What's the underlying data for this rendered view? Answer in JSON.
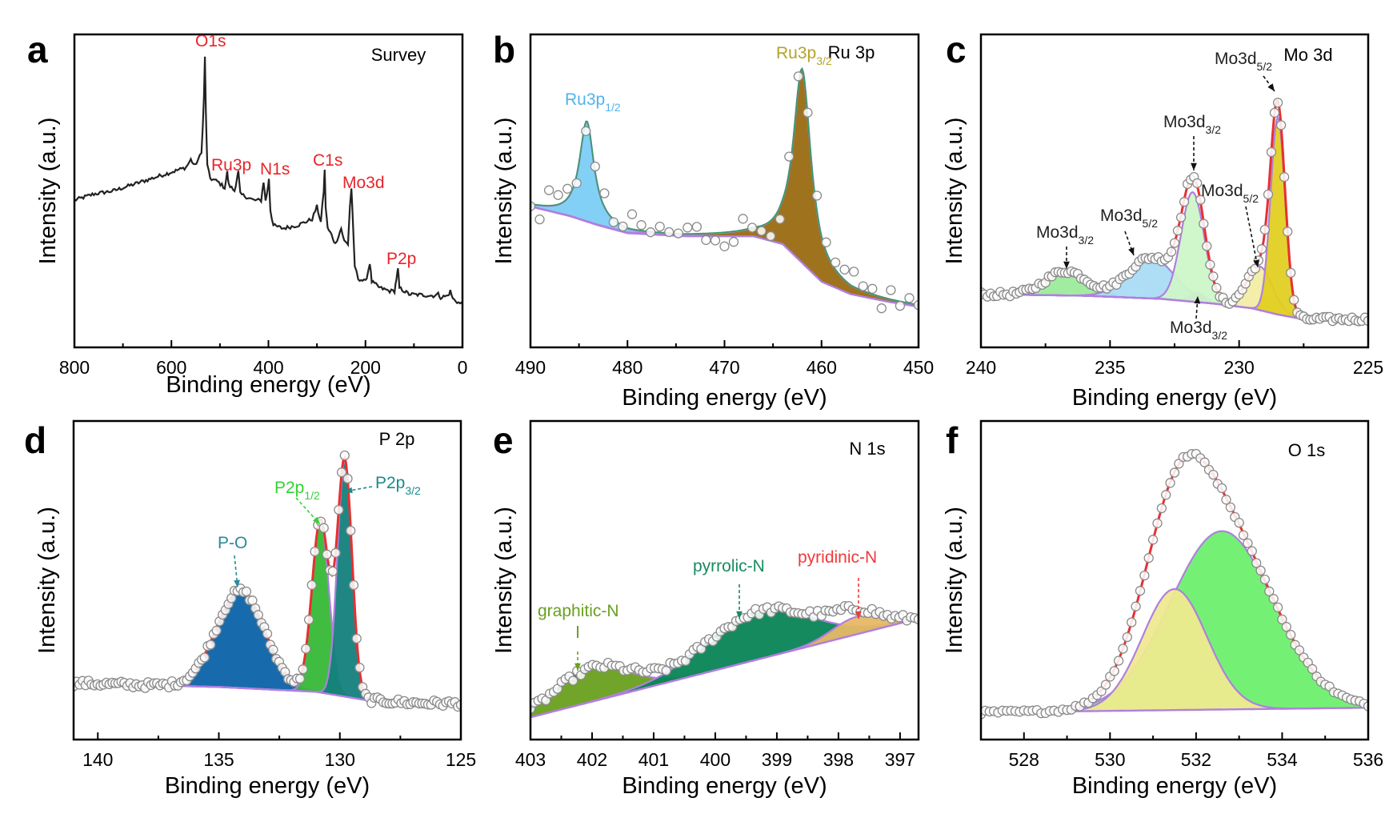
{
  "chart_data": [
    {
      "panel": "a",
      "type": "line",
      "title": "Survey",
      "xlabel": "Binding energy (eV)",
      "ylabel": "Intensity (a.u.)",
      "xlim": [
        800,
        0
      ],
      "xticks": [
        800,
        600,
        400,
        200,
        0
      ],
      "ylim": [
        0,
        1
      ],
      "grid": false,
      "line_color": "#222222",
      "series": [
        {
          "points": [
            [
              800,
              0.47
            ],
            [
              760,
              0.49
            ],
            [
              720,
              0.5
            ],
            [
              680,
              0.52
            ],
            [
              640,
              0.54
            ],
            [
              600,
              0.56
            ],
            [
              570,
              0.575
            ],
            [
              560,
              0.6
            ],
            [
              552,
              0.58
            ],
            [
              545,
              0.6
            ],
            [
              538,
              0.62
            ],
            [
              533,
              0.8
            ],
            [
              531,
              0.93
            ],
            [
              529,
              0.75
            ],
            [
              526,
              0.58
            ],
            [
              520,
              0.54
            ],
            [
              505,
              0.53
            ],
            [
              490,
              0.51
            ],
            [
              485,
              0.56
            ],
            [
              482,
              0.52
            ],
            [
              470,
              0.5
            ],
            [
              465,
              0.54
            ],
            [
              462,
              0.56
            ],
            [
              458,
              0.49
            ],
            [
              430,
              0.47
            ],
            [
              415,
              0.47
            ],
            [
              410,
              0.53
            ],
            [
              406,
              0.47
            ],
            [
              402,
              0.5
            ],
            [
              399,
              0.54
            ],
            [
              396,
              0.44
            ],
            [
              390,
              0.39
            ],
            [
              370,
              0.38
            ],
            [
              340,
              0.39
            ],
            [
              310,
              0.41
            ],
            [
              300,
              0.45
            ],
            [
              292,
              0.4
            ],
            [
              286,
              0.5
            ],
            [
              284,
              0.57
            ],
            [
              282,
              0.45
            ],
            [
              278,
              0.38
            ],
            [
              270,
              0.36
            ],
            [
              262,
              0.33
            ],
            [
              255,
              0.36
            ],
            [
              250,
              0.38
            ],
            [
              244,
              0.34
            ],
            [
              236,
              0.33
            ],
            [
              232,
              0.45
            ],
            [
              229,
              0.51
            ],
            [
              226,
              0.4
            ],
            [
              222,
              0.26
            ],
            [
              215,
              0.22
            ],
            [
              200,
              0.21
            ],
            [
              195,
              0.24
            ],
            [
              191,
              0.27
            ],
            [
              187,
              0.21
            ],
            [
              170,
              0.19
            ],
            [
              150,
              0.18
            ],
            [
              140,
              0.18
            ],
            [
              136,
              0.22
            ],
            [
              133,
              0.25
            ],
            [
              130,
              0.19
            ],
            [
              110,
              0.17
            ],
            [
              60,
              0.165
            ],
            [
              50,
              0.17
            ],
            [
              45,
              0.16
            ],
            [
              30,
              0.165
            ],
            [
              25,
              0.18
            ],
            [
              20,
              0.155
            ],
            [
              5,
              0.14
            ],
            [
              0,
              0.14
            ]
          ]
        }
      ],
      "annotations": [
        {
          "text": "O1s",
          "color": "#e8252a"
        },
        {
          "text": "Ru3p",
          "color": "#e8252a"
        },
        {
          "text": "N1s",
          "color": "#e8252a"
        },
        {
          "text": "C1s",
          "color": "#e8252a"
        },
        {
          "text": "Mo3d",
          "color": "#e8252a"
        },
        {
          "text": "P2p",
          "color": "#e8252a"
        }
      ]
    },
    {
      "panel": "b",
      "type": "area",
      "title": "Ru 3p",
      "xlabel": "Binding energy (eV)",
      "ylabel": "Intensity (a.u.)",
      "xlim": [
        490,
        450
      ],
      "xticks": [
        490,
        480,
        470,
        460,
        450
      ],
      "ylim": [
        0,
        1
      ],
      "grid": false,
      "envelope_color": "#3a9a6a",
      "baseline": [
        [
          490,
          0.45
        ],
        [
          486,
          0.42
        ],
        [
          483,
          0.39
        ],
        [
          480,
          0.365
        ],
        [
          474,
          0.355
        ],
        [
          467,
          0.355
        ],
        [
          464,
          0.33
        ],
        [
          462,
          0.27
        ],
        [
          460,
          0.21
        ],
        [
          457,
          0.17
        ],
        [
          453,
          0.145
        ],
        [
          450,
          0.13
        ]
      ],
      "components": [
        {
          "label": "Ru3p",
          "sub": "1/2",
          "center": 484.2,
          "height": 0.32,
          "width": 0.9,
          "profile": "lorentzian",
          "color": "#7ccdf6"
        },
        {
          "label": "Ru3p",
          "sub": "3/2",
          "center": 462.0,
          "height": 0.62,
          "width": 1.1,
          "profile": "lorentzian",
          "color": "#9a6a12"
        }
      ],
      "annotations": [
        {
          "text": "Ru3p",
          "sub": "1/2",
          "color": "#4fb3ef"
        },
        {
          "text": "Ru3p",
          "sub": "3/2",
          "color": "#b5a22a"
        }
      ]
    },
    {
      "panel": "c",
      "type": "area",
      "title": "Mo 3d",
      "xlabel": "Binding energy (eV)",
      "ylabel": "Intensity (a.u.)",
      "xlim": [
        240,
        225
      ],
      "xticks": [
        240,
        235,
        230,
        225
      ],
      "ylim": [
        0,
        1
      ],
      "grid": false,
      "envelope_color": "#e83030",
      "baseline": [
        [
          240,
          0.17
        ],
        [
          236,
          0.165
        ],
        [
          233,
          0.155
        ],
        [
          231,
          0.14
        ],
        [
          229.5,
          0.125
        ],
        [
          228.5,
          0.105
        ],
        [
          227.5,
          0.09
        ],
        [
          225,
          0.09
        ]
      ],
      "components": [
        {
          "label": "Mo3d",
          "sub": "3/2",
          "center": 236.7,
          "height": 0.078,
          "width": 0.8,
          "profile": "gaussian",
          "color": "#9deb9d"
        },
        {
          "label": "Mo3d",
          "sub": "5/2",
          "center": 233.4,
          "height": 0.13,
          "width": 0.9,
          "profile": "gaussian",
          "color": "#a9dcf6"
        },
        {
          "label": "Mo3d",
          "sub": "3/2",
          "center": 231.6,
          "height": 0.03,
          "width": 0.3,
          "profile": "gaussian",
          "color": "#9a6ad8"
        },
        {
          "label": "Mo3d",
          "sub": "3/2",
          "center": 231.8,
          "height": 0.35,
          "width": 0.45,
          "profile": "gaussian",
          "color": "#cdf6c8"
        },
        {
          "label": "Mo3d",
          "sub": "5/2",
          "center": 229.2,
          "height": 0.14,
          "width": 0.5,
          "profile": "gaussian",
          "color": "#f2eea6"
        },
        {
          "label": "Mo3d",
          "sub": "5/2",
          "center": 228.5,
          "height": 0.63,
          "width": 0.28,
          "profile": "gaussian",
          "color": "#e2cf22"
        }
      ],
      "annotations": [
        {
          "text": "Mo3d",
          "sub": "5/2",
          "color": "#222222"
        },
        {
          "text": "Mo3d",
          "sub": "3/2",
          "color": "#222222"
        },
        {
          "text": "Mo3d",
          "sub": "5/2",
          "color": "#222222"
        },
        {
          "text": "Mo3d",
          "sub": "5/2",
          "color": "#222222"
        },
        {
          "text": "Mo3d",
          "sub": "3/2",
          "color": "#222222"
        },
        {
          "text": "Mo3d",
          "sub": "3/2",
          "color": "#222222"
        }
      ]
    },
    {
      "panel": "d",
      "type": "area",
      "title": "P 2p",
      "xlabel": "Binding energy (eV)",
      "ylabel": "Intensity (a.u.)",
      "xlim": [
        141,
        125
      ],
      "xticks": [
        140,
        135,
        130,
        125
      ],
      "ylim": [
        0,
        1
      ],
      "grid": false,
      "envelope_color": "#e83030",
      "baseline": [
        [
          141,
          0.177
        ],
        [
          135,
          0.165
        ],
        [
          131,
          0.15
        ],
        [
          129,
          0.125
        ],
        [
          127,
          0.115
        ],
        [
          125,
          0.113
        ]
      ],
      "components": [
        {
          "label": "P-O",
          "center": 134.1,
          "height": 0.305,
          "width": 1.0,
          "profile": "gaussian",
          "color": "#0b63a8"
        },
        {
          "label": "P2p",
          "sub": "1/2",
          "center": 130.8,
          "height": 0.54,
          "width": 0.35,
          "profile": "gaussian",
          "color": "#36b936"
        },
        {
          "label": "P2p",
          "sub": "3/2",
          "center": 129.8,
          "height": 0.74,
          "width": 0.3,
          "profile": "gaussian",
          "color": "#14807c"
        }
      ],
      "annotations": [
        {
          "text": "P-O",
          "color": "#2a8a9a"
        },
        {
          "text": "P2p",
          "sub": "1/2",
          "color": "#33d233"
        },
        {
          "text": "P2p",
          "sub": "3/2",
          "color": "#1a8a8a"
        }
      ]
    },
    {
      "panel": "e",
      "type": "area",
      "title": "N 1s",
      "xlabel": "Binding energy (eV)",
      "ylabel": "Intensity (a.u.)",
      "xlim": [
        403,
        396.7
      ],
      "xticks": [
        403,
        402,
        401,
        400,
        399,
        398,
        397
      ],
      "ylim": [
        0,
        1
      ],
      "grid": false,
      "envelope_color": "#2a6ad8",
      "baseline": [
        [
          403,
          0.07
        ],
        [
          396.7,
          0.38
        ]
      ],
      "components": [
        {
          "label": "graphitic-N",
          "center": 402.0,
          "height": 0.105,
          "width": 0.6,
          "profile": "gaussian",
          "color": "#69a01e"
        },
        {
          "label": "pyrrolic-N",
          "center": 399.3,
          "height": 0.15,
          "width": 0.85,
          "profile": "gaussian",
          "color": "#0a8456"
        },
        {
          "label": "pyridinic-N",
          "center": 397.7,
          "height": 0.055,
          "width": 0.4,
          "profile": "gaussian",
          "color": "#e6b865"
        }
      ],
      "annotations": [
        {
          "text": "graphitic-N",
          "color": "#6aa020"
        },
        {
          "text": "pyrrolic-N",
          "color": "#1a8a60"
        },
        {
          "text": "pyridinic-N",
          "color": "#f03a3a"
        }
      ]
    },
    {
      "panel": "f",
      "type": "area",
      "title": "O 1s",
      "xlabel": "Binding energy (eV)",
      "ylabel": "Intensity (a.u.)",
      "xlim": [
        527,
        536
      ],
      "xticks": [
        528,
        530,
        532,
        534,
        536
      ],
      "ylim": [
        0,
        1
      ],
      "grid": false,
      "envelope_color": "#e83030",
      "baseline": [
        [
          527,
          0.085
        ],
        [
          536,
          0.1
        ]
      ],
      "components": [
        {
          "center": 532.6,
          "height": 0.56,
          "width": 1.2,
          "profile": "gaussian",
          "color": "#6df06d"
        },
        {
          "center": 531.5,
          "height": 0.38,
          "width": 0.75,
          "profile": "gaussian",
          "color": "#eee98f"
        }
      ],
      "annotations": []
    }
  ]
}
